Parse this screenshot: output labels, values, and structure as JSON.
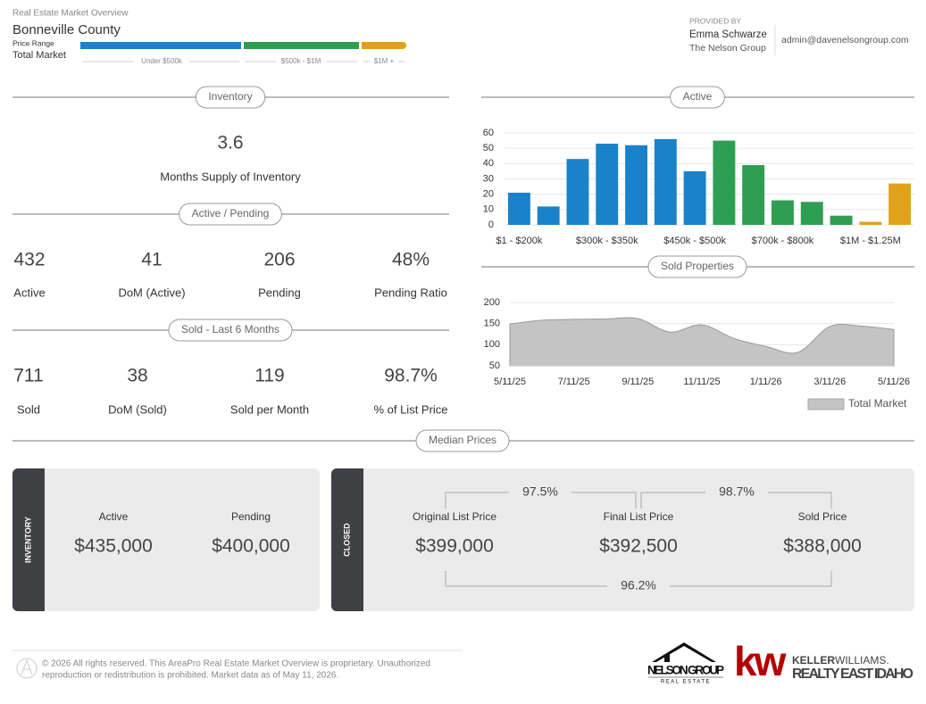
{
  "header": {
    "title": "Real Estate Market Overview",
    "area": "Bonneville County",
    "price_range_label": "Price Range",
    "market": "Total Market",
    "price_ranges": [
      "Under $500k",
      "$500k - $1M",
      "$1M +"
    ]
  },
  "provider": {
    "label": "PROVIDED BY",
    "name": "Emma Schwarze",
    "company": "The Nelson Group",
    "email": "admin@davenelsongroup.com"
  },
  "inventory": {
    "heading": "Inventory",
    "value": "3.6",
    "label": "Months Supply of Inventory"
  },
  "active_pending": {
    "heading": "Active / Pending",
    "stats": [
      {
        "value": "432",
        "label": "Active"
      },
      {
        "value": "41",
        "label": "DoM (Active)"
      },
      {
        "value": "206",
        "label": "Pending"
      },
      {
        "value": "48%",
        "label": "Pending Ratio"
      }
    ]
  },
  "sold": {
    "heading": "Sold - Last 6 Months",
    "stats": [
      {
        "value": "711",
        "label": "Sold"
      },
      {
        "value": "38",
        "label": "DoM (Sold)"
      },
      {
        "value": "119",
        "label": "Sold per Month"
      },
      {
        "value": "98.7%",
        "label": "% of List Price"
      }
    ]
  },
  "median_prices": {
    "heading": "Median Prices",
    "inventory": {
      "tab": "INVENTORY",
      "items": [
        {
          "label": "Active",
          "value": "$435,000"
        },
        {
          "label": "Pending",
          "value": "$400,000"
        }
      ]
    },
    "closed": {
      "tab": "CLOSED",
      "items": [
        {
          "label": "Original List Price",
          "value": "$399,000"
        },
        {
          "label": "Final List Price",
          "value": "$392,500"
        },
        {
          "label": "Sold Price",
          "value": "$388,000"
        }
      ],
      "ratios": [
        "97.5%",
        "98.7%",
        "96.2%"
      ]
    }
  },
  "chart_data": [
    {
      "type": "bar",
      "title": "Active",
      "categories": [
        "$1 - $200k",
        null,
        null,
        "$300k - $350k",
        null,
        null,
        "$450k - $500k",
        null,
        null,
        "$700k - $800k",
        null,
        null,
        "$1M - $1.25M",
        null
      ],
      "values": [
        21,
        12,
        43,
        53,
        52,
        56,
        35,
        55,
        39,
        16,
        15,
        6,
        2,
        27
      ],
      "colors": [
        "#1a82c8",
        "#1a82c8",
        "#1a82c8",
        "#1a82c8",
        "#1a82c8",
        "#1a82c8",
        "#1a82c8",
        "#2e9e52",
        "#2e9e52",
        "#2e9e52",
        "#2e9e52",
        "#2e9e52",
        "#e0a21c",
        "#e0a21c"
      ],
      "ylim": [
        0,
        60
      ],
      "yticks": [
        0,
        10,
        20,
        30,
        40,
        50,
        60
      ],
      "grid": true
    },
    {
      "type": "area",
      "title": "Sold Properties",
      "categories": [
        "5/11/25",
        null,
        "7/11/25",
        null,
        "9/11/25",
        null,
        "11/11/25",
        null,
        "1/11/26",
        null,
        "3/11/26",
        null,
        "5/11/26"
      ],
      "series": [
        {
          "name": "Total Market",
          "color": "#c4c4c4",
          "values": [
            149,
            158,
            160,
            161,
            162,
            130,
            147,
            115,
            96,
            82,
            143,
            144,
            136
          ]
        }
      ],
      "ylim": [
        50,
        200
      ],
      "yticks": [
        50,
        100,
        150,
        200
      ],
      "grid": true,
      "legend": "bottom-right"
    }
  ],
  "footer": {
    "copyright": [
      "© 2026 All rights reserved. This AreaPro Real Estate Market Overview is proprietary. Unauthorized",
      "reproduction or redistribution is prohibited. Market data as of May 11, 2026."
    ],
    "logos": {
      "nelson": "NELSON GROUP",
      "nelson_sub": "REAL ESTATE",
      "kw": "kw",
      "kw_a": "KELLER",
      "kw_b": "WILLIAMS.",
      "kw_sub": "REALTY EAST IDAHO"
    }
  }
}
